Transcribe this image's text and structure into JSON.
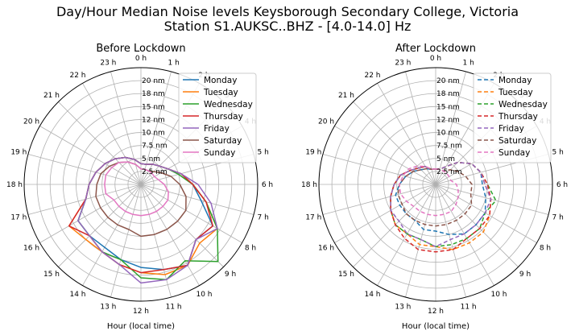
{
  "figure": {
    "title_line1": "Day/Hour Median Noise levels Keysborough Secondary College, Victoria",
    "title_line2": "Station S1.AUKSC..BHZ - [4.0-14.0] Hz"
  },
  "chart_data": [
    {
      "type": "line",
      "projection": "polar",
      "title": "Before Lockdown",
      "xlabel": "Hour (local time)",
      "theta_labels": [
        "0 h",
        "1 h",
        "2 h",
        "3 h",
        "4 h",
        "5 h",
        "6 h",
        "7 h",
        "8 h",
        "9 h",
        "10 h",
        "11 h",
        "12 h",
        "13 h",
        "14 h",
        "15 h",
        "16 h",
        "17 h",
        "18 h",
        "19 h",
        "20 h",
        "21 h",
        "22 h",
        "23 h"
      ],
      "r_tick_labels": [
        "2.5 nm",
        "5 nm",
        "7.5 nm",
        "10 nm",
        "12 nm",
        "15 nm",
        "18 nm",
        "20 nm"
      ],
      "r_max": 22.5,
      "line_style": "solid",
      "grid": true,
      "legend_position": "top-right",
      "hours": [
        0,
        1,
        2,
        3,
        4,
        5,
        6,
        7,
        8,
        9,
        10,
        11,
        12,
        13,
        14,
        15,
        16,
        17,
        18,
        19,
        20,
        21,
        22,
        23
      ],
      "series": [
        {
          "name": "Monday",
          "color": "#1f77b4",
          "values": [
            4,
            4,
            4.5,
            5,
            6,
            8,
            10,
            12,
            16,
            15,
            18,
            17,
            16,
            15,
            14,
            14,
            14,
            11,
            10,
            9,
            8,
            7,
            6,
            5
          ]
        },
        {
          "name": "Tuesday",
          "color": "#ff7f0e",
          "values": [
            4,
            4,
            4.5,
            5,
            6,
            8,
            10,
            13,
            17,
            16,
            18,
            18,
            17,
            16,
            15,
            15,
            16,
            11,
            10,
            9,
            8,
            7,
            6,
            5
          ]
        },
        {
          "name": "Wednesday",
          "color": "#2ca02c",
          "values": [
            4,
            4,
            4.5,
            5,
            6,
            7.5,
            10,
            13,
            17,
            21,
            17,
            19,
            18,
            15,
            15,
            14,
            14,
            11,
            10,
            9,
            8,
            7,
            6,
            5
          ]
        },
        {
          "name": "Thursday",
          "color": "#d62728",
          "values": [
            4,
            4,
            4.5,
            5,
            6,
            8,
            10,
            13,
            16,
            15,
            18,
            17,
            17,
            16,
            15,
            14,
            16,
            11,
            10,
            9,
            8,
            7,
            6,
            5
          ]
        },
        {
          "name": "Friday",
          "color": "#9467bd",
          "values": [
            4,
            4,
            4.5,
            5,
            6,
            8,
            11,
            14,
            17,
            15,
            18,
            19,
            19,
            16,
            15,
            14,
            14,
            11,
            10,
            9,
            8,
            7,
            6,
            5
          ]
        },
        {
          "name": "Saturday",
          "color": "#8c564b",
          "values": [
            3,
            3,
            3,
            3.5,
            4.5,
            6,
            7.5,
            9,
            10,
            10,
            10,
            10,
            10,
            9,
            9,
            9,
            9,
            9,
            8.5,
            8,
            7,
            6,
            5,
            4
          ]
        },
        {
          "name": "Sunday",
          "color": "#e377c2",
          "values": [
            3,
            3,
            3,
            3,
            3,
            3.5,
            4.5,
            5.5,
            6,
            6,
            6,
            6,
            6,
            6,
            6,
            6,
            6,
            7,
            7,
            7,
            6.5,
            6,
            5,
            4
          ]
        }
      ]
    },
    {
      "type": "line",
      "projection": "polar",
      "title": "After Lockdown",
      "xlabel": "Hour (local time)",
      "theta_labels": [
        "0 h",
        "1 h",
        "2 h",
        "3 h",
        "4 h",
        "5 h",
        "6 h",
        "7 h",
        "8 h",
        "9 h",
        "10 h",
        "11 h",
        "12 h",
        "13 h",
        "14 h",
        "15 h",
        "16 h",
        "17 h",
        "18 h",
        "19 h",
        "20 h",
        "21 h",
        "22 h",
        "23 h"
      ],
      "r_tick_labels": [
        "2.5 nm",
        "5 nm",
        "7.5 nm",
        "10 nm",
        "12 nm",
        "15 nm",
        "18 nm",
        "20 nm"
      ],
      "r_max": 22.5,
      "line_style": "dashed",
      "grid": true,
      "legend_position": "top-right",
      "hours": [
        0,
        1,
        2,
        3,
        4,
        5,
        6,
        7,
        8,
        9,
        10,
        11,
        12,
        13,
        14,
        15,
        16,
        17,
        18,
        19,
        20,
        21,
        22,
        23
      ],
      "series": [
        {
          "name": "Monday",
          "color": "#1f77b4",
          "values": [
            3,
            3,
            4,
            6,
            8,
            9,
            9,
            10,
            11,
            11,
            11,
            10,
            9,
            9,
            8,
            8,
            8,
            8,
            7,
            6,
            5,
            4,
            3.5,
            3
          ]
        },
        {
          "name": "Tuesday",
          "color": "#ff7f0e",
          "values": [
            3,
            3,
            4,
            6,
            8,
            9,
            9.5,
            11,
            12,
            13,
            13,
            13,
            12,
            12,
            11,
            11,
            10,
            9,
            8,
            7,
            5.5,
            4.5,
            4,
            3
          ]
        },
        {
          "name": "Wednesday",
          "color": "#2ca02c",
          "values": [
            3,
            3,
            4,
            6,
            8,
            9,
            10,
            12,
            11,
            12,
            12,
            12,
            12,
            11,
            11,
            11,
            10,
            9,
            8,
            7,
            5.5,
            4.5,
            4,
            3
          ]
        },
        {
          "name": "Thursday",
          "color": "#d62728",
          "values": [
            3,
            3,
            4,
            6,
            8,
            9,
            10,
            11,
            12,
            12,
            12,
            13,
            13,
            13,
            12,
            11,
            10,
            9,
            8,
            7,
            5.5,
            4.5,
            4,
            3
          ]
        },
        {
          "name": "Friday",
          "color": "#9467bd",
          "values": [
            3,
            3,
            4,
            6,
            8,
            9,
            9.5,
            11,
            11,
            11,
            11,
            11,
            12,
            11,
            11,
            10,
            10,
            9,
            8,
            7,
            5.5,
            4.5,
            4,
            3
          ]
        },
        {
          "name": "Saturday",
          "color": "#8c564b",
          "values": [
            3,
            3,
            3,
            4,
            5,
            6,
            7,
            7,
            8,
            8,
            8,
            8,
            8,
            8,
            8,
            8,
            7.5,
            7.5,
            7,
            6,
            5,
            4,
            3.5,
            3
          ]
        },
        {
          "name": "Sunday",
          "color": "#e377c2",
          "values": [
            3,
            3,
            3,
            3,
            3,
            3,
            4,
            4.5,
            5,
            5.5,
            6,
            6,
            6,
            6,
            6,
            6,
            6.5,
            7,
            7,
            6.5,
            6,
            5,
            4,
            3
          ]
        }
      ]
    }
  ]
}
